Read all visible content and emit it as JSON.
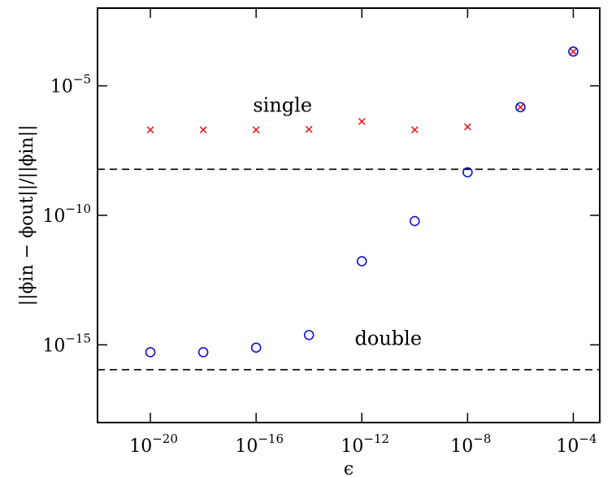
{
  "chart_data": {
    "type": "scatter",
    "xlabel": "ϵ",
    "ylabel": "||ϕin − ϕout||/||ϕin||",
    "xscale": "log",
    "yscale": "log",
    "xlim": [
      1e-22,
      0.001
    ],
    "ylim": [
      1e-18,
      0.01
    ],
    "grid": false,
    "x_ticks": [
      {
        "value": 1e-20,
        "base": "10",
        "exp": "−20"
      },
      {
        "value": 1e-16,
        "base": "10",
        "exp": "−16"
      },
      {
        "value": 1e-12,
        "base": "10",
        "exp": "−12"
      },
      {
        "value": 1e-08,
        "base": "10",
        "exp": "−8"
      },
      {
        "value": 0.0001,
        "base": "10",
        "exp": "−4"
      }
    ],
    "y_ticks": [
      {
        "value": 1e-15,
        "base": "10",
        "exp": "−15"
      },
      {
        "value": 1e-10,
        "base": "10",
        "exp": "−10"
      },
      {
        "value": 1e-05,
        "base": "10",
        "exp": "−5"
      }
    ],
    "series": [
      {
        "marker": "x",
        "color": "#e8191c",
        "x": [
          1e-20,
          1e-18,
          1e-16,
          1e-14,
          1e-12,
          1e-10,
          1e-08,
          1e-06,
          0.0001
        ],
        "y": [
          2e-07,
          2e-07,
          2e-07,
          2.1e-07,
          4.2e-07,
          2e-07,
          2.6e-07,
          1.5e-06,
          0.00021
        ]
      },
      {
        "marker": "o",
        "color": "#1010d8",
        "x": [
          1e-20,
          1e-18,
          1e-16,
          1e-14,
          1e-12,
          1e-10,
          1e-08,
          1e-06,
          0.0001
        ],
        "y": [
          5.2e-16,
          5.2e-16,
          7.8e-16,
          2.4e-15,
          1.7e-12,
          6e-11,
          4.6e-09,
          1.5e-06,
          0.00021
        ]
      }
    ],
    "reference_lines": [
      {
        "y": 6e-09,
        "style": "dashed"
      },
      {
        "y": 1.1e-16,
        "style": "dashed"
      }
    ],
    "annotations": [
      {
        "text": "single",
        "x": 1e-15,
        "y": 1e-06
      },
      {
        "text": "double",
        "x": 1e-11,
        "y": 1e-15
      }
    ]
  }
}
